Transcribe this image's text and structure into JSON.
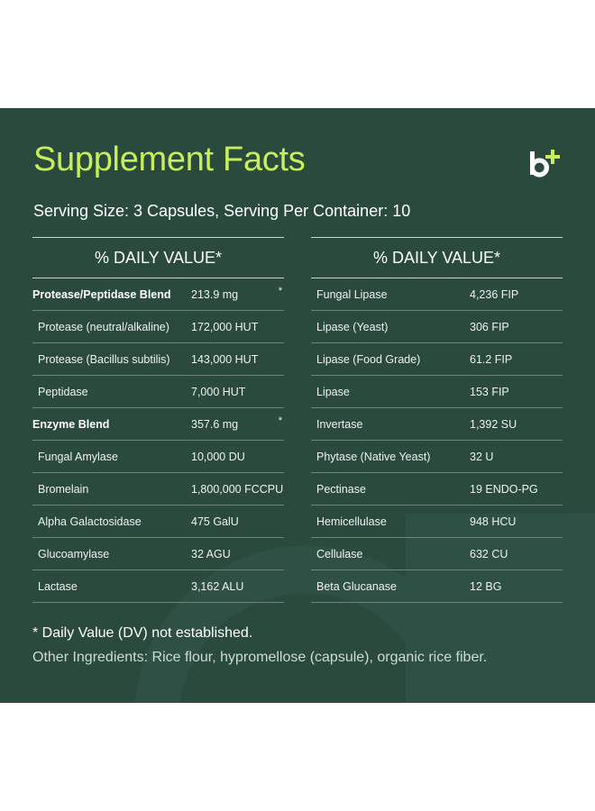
{
  "title": "Supplement Facts",
  "serving": "Serving Size: 3 Capsules, Serving Per Container: 10",
  "left_header": "% DAILY VALUE*",
  "right_header": "% DAILY VALUE*",
  "left_rows": [
    {
      "name": "Protease/Peptidase Blend",
      "amount": "213.9 mg",
      "mark": "*"
    },
    {
      "name": "Protease (neutral/alkaline)",
      "amount": "172,000 HUT",
      "mark": ""
    },
    {
      "name": "Protease (Bacillus subtilis)",
      "amount": "143,000 HUT",
      "mark": ""
    },
    {
      "name": "Peptidase",
      "amount": "7,000 HUT",
      "mark": ""
    },
    {
      "name": "Enzyme Blend",
      "amount": "357.6 mg",
      "mark": "*"
    },
    {
      "name": "Fungal Amylase",
      "amount": "10,000 DU",
      "mark": ""
    },
    {
      "name": "Bromelain",
      "amount": "1,800,000 FCCPU",
      "mark": ""
    },
    {
      "name": "Alpha Galactosidase",
      "amount": "475 GalU",
      "mark": ""
    },
    {
      "name": "Glucoamylase",
      "amount": "32 AGU",
      "mark": ""
    },
    {
      "name": "Lactase",
      "amount": "3,162 ALU",
      "mark": ""
    }
  ],
  "right_rows": [
    {
      "name": "Fungal Lipase",
      "amount": "4,236 FIP"
    },
    {
      "name": "Lipase (Yeast)",
      "amount": "306 FIP"
    },
    {
      "name": "Lipase (Food Grade)",
      "amount": "61.2 FIP"
    },
    {
      "name": "Lipase",
      "amount": "153 FIP"
    },
    {
      "name": "Invertase",
      "amount": "1,392 SU"
    },
    {
      "name": "Phytase (Native Yeast)",
      "amount": "32 U"
    },
    {
      "name": "Pectinase",
      "amount": "19 ENDO-PG"
    },
    {
      "name": "Hemicellulase",
      "amount": "948 HCU"
    },
    {
      "name": "Cellulase",
      "amount": "632 CU"
    },
    {
      "name": "Beta Glucanase",
      "amount": "12 BG"
    }
  ],
  "footnote": "* Daily Value (DV) not established.",
  "other_ingredients": "Other Ingredients: Rice flour, hypromellose (capsule), organic rice fiber.",
  "colors": {
    "panel": "#2a4a3e",
    "accent": "#c8ee5a",
    "text": "#ffffff"
  },
  "logo_icon": "b-plus-logo-icon"
}
